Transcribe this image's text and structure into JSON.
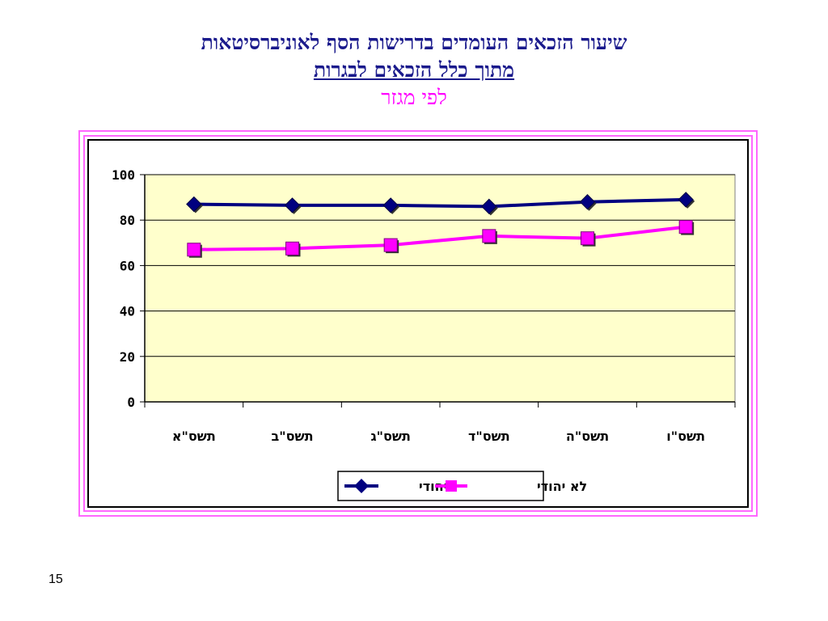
{
  "slide": {
    "title_line1": "שיעור הזכאים העומדים בדרישות הסף לאוניברסיטאות",
    "title_line2": "מתוך כלל הזכאים לבגרות",
    "title_line3": "לפי מגזר",
    "page_number": "15"
  },
  "colors": {
    "plot_background": "#ffffcc",
    "series_jewish": "#000080",
    "series_non_jewish": "#ff00ff",
    "title_text": "#1a1a8c",
    "frame": "#ff66ff"
  },
  "chart_data": {
    "type": "line",
    "categories": [
      "תשס\"א",
      "תשס\"ב",
      "תשס\"ג",
      "תשס\"ד",
      "תשס\"ה",
      "תשס\"ו"
    ],
    "series": [
      {
        "name": "יהודי",
        "values": [
          87,
          86.5,
          86.5,
          86,
          88,
          89
        ],
        "marker": "diamond"
      },
      {
        "name": "לא יהודי",
        "values": [
          67,
          67.5,
          69,
          73,
          72,
          77
        ],
        "marker": "square"
      }
    ],
    "ylim": [
      0,
      100
    ],
    "yticks": [
      "0",
      "20",
      "40",
      "60",
      "80",
      "100"
    ],
    "grid": true,
    "legend_position": "bottom"
  }
}
